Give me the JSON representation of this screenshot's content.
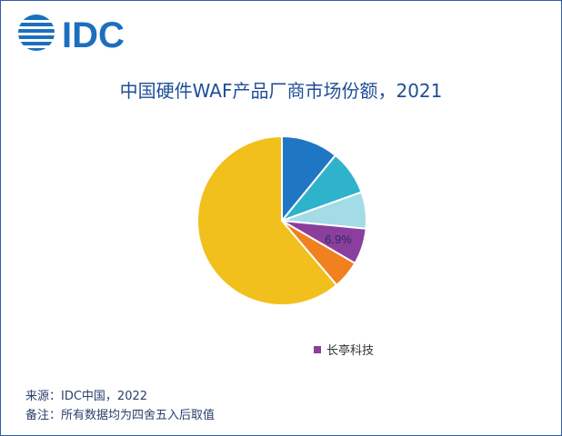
{
  "logo": {
    "text": "IDC",
    "color": "#1c6fbf"
  },
  "colors": {
    "border": "#2e5ea8",
    "title": "#1f4e96",
    "footer_text": "#2a3f6b"
  },
  "chart_data": {
    "type": "pie",
    "title": "中国硬件WAF产品厂商市场份额，2021",
    "slices": [
      {
        "name": "",
        "value": 10.9,
        "color": "#1f77c4",
        "label": ""
      },
      {
        "name": "",
        "value": 8.6,
        "color": "#2fb2cc",
        "label": ""
      },
      {
        "name": "",
        "value": 7.0,
        "color": "#a3dbe6",
        "label": ""
      },
      {
        "name": "长亭科技",
        "value": 6.9,
        "color": "#8b3f9c",
        "label": "6.9%"
      },
      {
        "name": "",
        "value": 5.4,
        "color": "#f08020",
        "label": ""
      },
      {
        "name": "",
        "value": 61.2,
        "color": "#f2c01c",
        "label": ""
      }
    ],
    "legend": {
      "position": "bottom-right",
      "entries": [
        {
          "name": "长亭科技",
          "color": "#8b3f9c"
        }
      ]
    }
  },
  "footer": {
    "source": "来源：IDC中国，2022",
    "note": "备注：所有数据均为四舍五入后取值"
  }
}
